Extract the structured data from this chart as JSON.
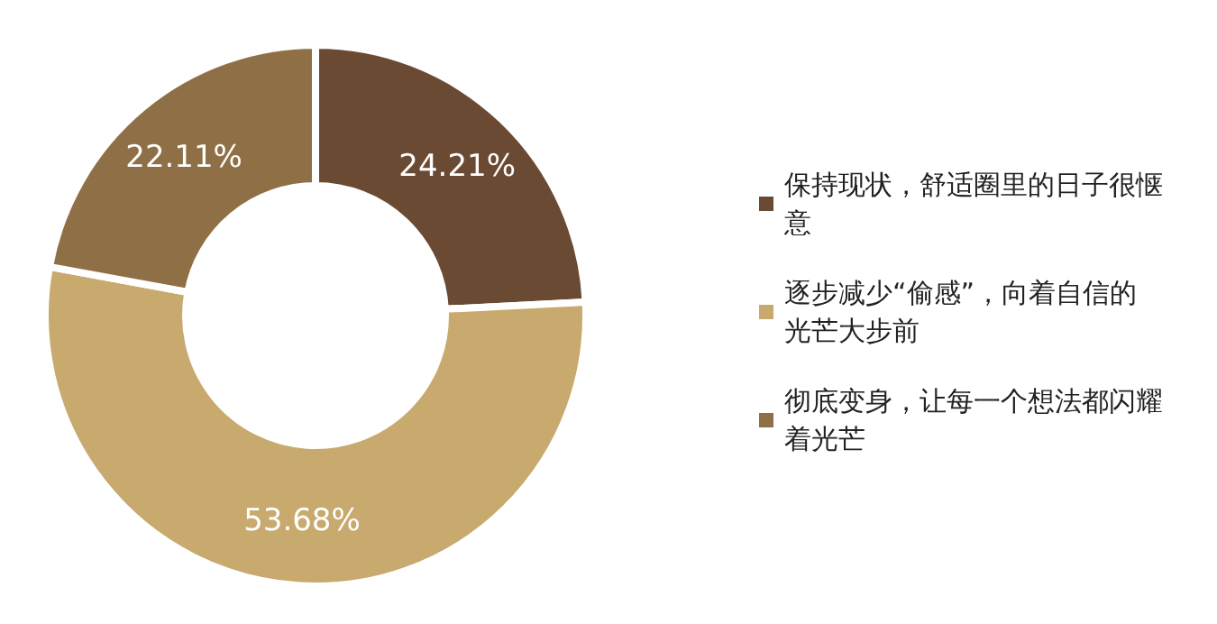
{
  "chart_data": {
    "type": "donut",
    "categories": [
      "保持现状，舒适圈里的日子很惬意",
      "逐步减少“偷感”，向着自信的光芒大步前",
      "彻底变身，让每一个想法都闪耀着光芒"
    ],
    "values": [
      24.21,
      53.68,
      22.11
    ],
    "colors": [
      "#6b4a33",
      "#c8a96e",
      "#8f7046"
    ],
    "value_labels": [
      "24.21%",
      "53.68%",
      "22.11%"
    ],
    "legend": "right"
  }
}
